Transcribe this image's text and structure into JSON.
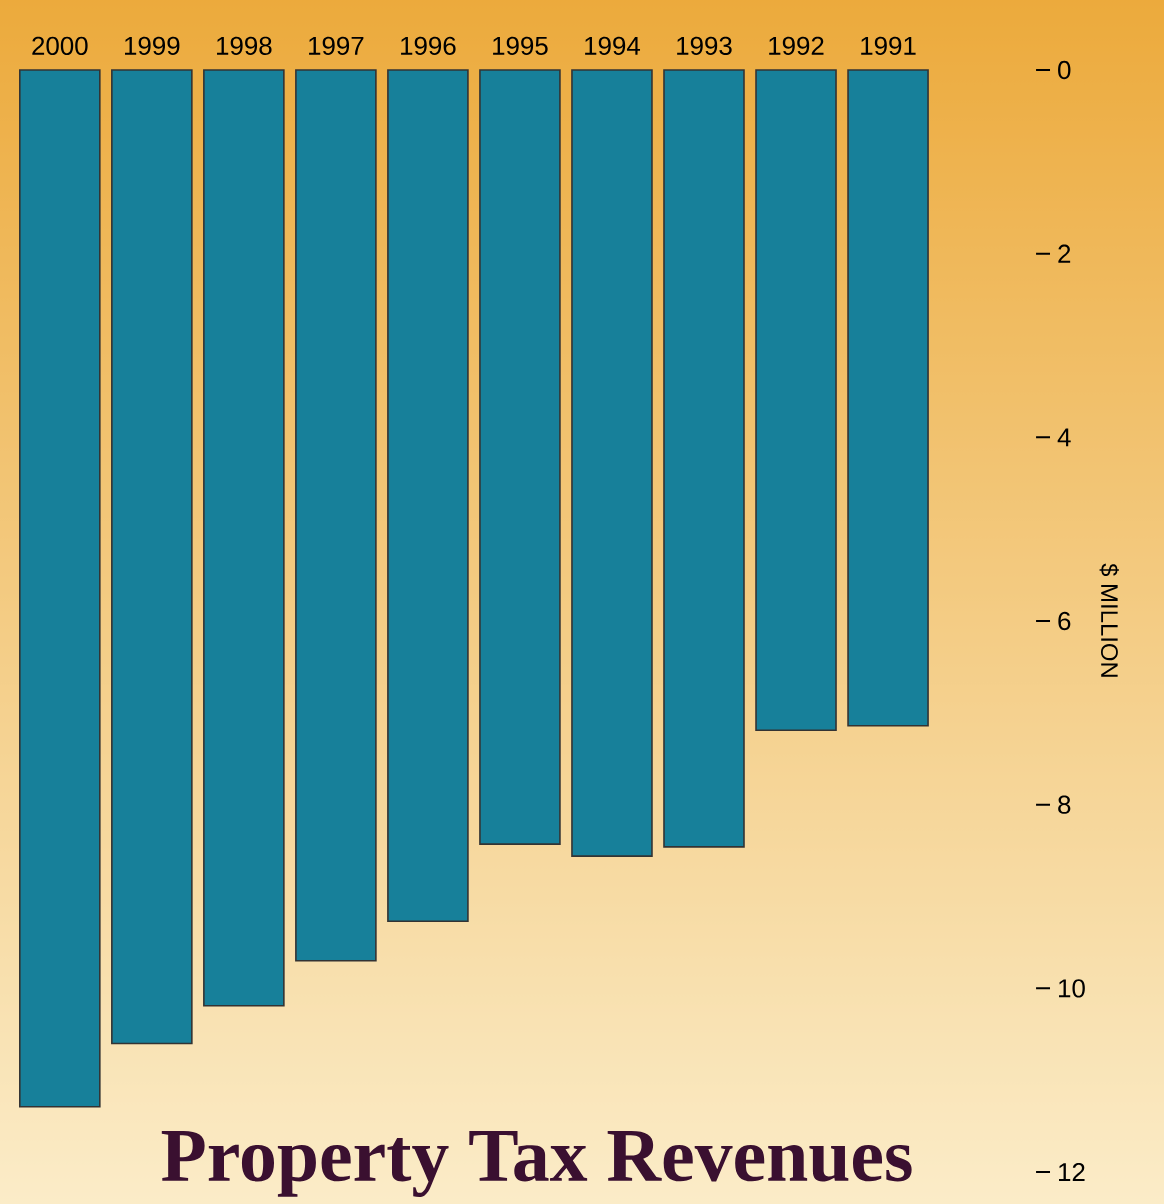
{
  "chart_data": {
    "type": "bar",
    "title": "Property Tax Revenues",
    "ylabel": "$ MILLION",
    "categories": [
      "2000",
      "1999",
      "1998",
      "1997",
      "1996",
      "1995",
      "1994",
      "1993",
      "1992",
      "1991"
    ],
    "values": [
      11.29,
      10.6,
      10.19,
      9.7,
      9.27,
      8.43,
      8.56,
      8.46,
      7.19,
      7.14
    ],
    "color": "#17809a",
    "ylim": [
      12,
      0
    ],
    "yticks": [
      0,
      2,
      4,
      6,
      8,
      10,
      12
    ]
  }
}
